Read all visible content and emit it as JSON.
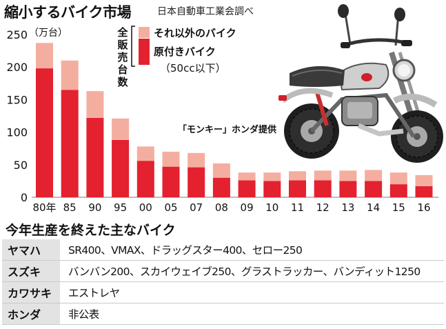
{
  "title": "縮小するバイク市場",
  "source": "日本自動車工業会調べ",
  "photo_credit": "「モンキー」ホンダ提供",
  "colors": {
    "other": "#f4aea0",
    "scooter": "#e3212f"
  },
  "chart_data": {
    "type": "bar",
    "stacked": true,
    "unit_label": "（万台）",
    "ylabel": "全販売台数",
    "ylim": [
      0,
      250
    ],
    "yticks": [
      0,
      50,
      100,
      150,
      200,
      250
    ],
    "grid": false,
    "legend_position": "top",
    "categories": [
      "80年",
      "85",
      "90",
      "95",
      "00",
      "05",
      "07",
      "08",
      "09",
      "10",
      "11",
      "12",
      "13",
      "14",
      "15",
      "16"
    ],
    "series": [
      {
        "name": "原付きバイク",
        "name_sub": "（50cc以下）",
        "values": [
          198,
          165,
          122,
          88,
          56,
          47,
          46,
          30,
          26,
          25,
          26,
          26,
          25,
          25,
          20,
          17
        ]
      },
      {
        "name": "それ以外のバイク",
        "values": [
          39,
          45,
          41,
          33,
          22,
          23,
          22,
          22,
          12,
          13,
          14,
          15,
          16,
          17,
          18,
          17
        ]
      }
    ]
  },
  "table": {
    "title": "今年生産を終えた主なバイク",
    "rows": [
      {
        "maker": "ヤマハ",
        "models": "SR400、VMAX、ドラッグスター400、セロー250"
      },
      {
        "maker": "スズキ",
        "models": "バンバン200、スカイウェイブ250、グラストラッカー、バンディット1250"
      },
      {
        "maker": "カワサキ",
        "models": "エストレヤ"
      },
      {
        "maker": "ホンダ",
        "models": "非公表"
      }
    ]
  }
}
